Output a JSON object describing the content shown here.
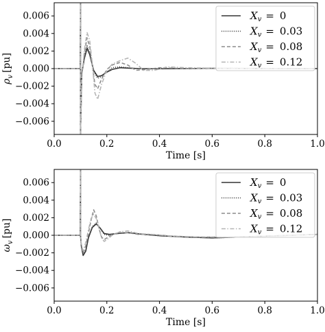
{
  "chart_data": [
    {
      "type": "line",
      "xlabel": "Time [s]",
      "ylabel": "ρ_v [pu]",
      "ylabel_main": "ρ",
      "ylabel_sub": "v",
      "ylabel_unit": "[pu]",
      "xlim": [
        0.0,
        1.0
      ],
      "ylim": [
        -0.0075,
        0.0075
      ],
      "xticks": [
        "0.0",
        "0.2",
        "0.4",
        "0.6",
        "0.8",
        "1.0"
      ],
      "xtick_values": [
        0.0,
        0.2,
        0.4,
        0.6,
        0.8,
        1.0
      ],
      "yticks": [
        "−0.006",
        "−0.004",
        "−0.002",
        "0.000",
        "0.002",
        "0.004",
        "0.006"
      ],
      "ytick_values": [
        -0.006,
        -0.004,
        -0.002,
        0.0,
        0.002,
        0.004,
        0.006
      ],
      "legend_position": "top-right",
      "grid": false,
      "series": [
        {
          "name": "X_v = 0",
          "legend_var": "X",
          "legend_sub": "v",
          "legend_value": "0",
          "style": "solid",
          "color": "#333333",
          "x": [
            0,
            0.099,
            0.1,
            0.1,
            0.105,
            0.115,
            0.125,
            0.135,
            0.15,
            0.165,
            0.18,
            0.2,
            0.22,
            0.25,
            0.28,
            0.32,
            0.38,
            0.5,
            0.6,
            0.7,
            0.8,
            0.9,
            1.0
          ],
          "y": [
            0,
            0,
            0.0075,
            -0.0075,
            -0.0005,
            0.0012,
            0.0023,
            0.0016,
            -0.0002,
            -0.0009,
            -0.0008,
            -0.0004,
            -0.0001,
            0.0001,
            5e-05,
            0,
            -2e-05,
            0,
            3e-05,
            2e-05,
            1e-05,
            0,
            0
          ]
        },
        {
          "name": "X_v = 0.03",
          "legend_var": "X",
          "legend_sub": "v",
          "legend_value": "0.03",
          "style": "dotted",
          "color": "#444444",
          "x": [
            0,
            0.099,
            0.1,
            0.1,
            0.105,
            0.115,
            0.125,
            0.135,
            0.15,
            0.165,
            0.18,
            0.2,
            0.22,
            0.25,
            0.28,
            0.32,
            0.38,
            0.5,
            0.6,
            0.7,
            0.8,
            0.9,
            1.0
          ],
          "y": [
            0,
            0,
            0.0075,
            -0.0075,
            -0.0006,
            0.0014,
            0.0026,
            0.0018,
            -0.0003,
            -0.0011,
            -0.0009,
            -0.0004,
            0.0001,
            0.0002,
            0.0001,
            0,
            -3e-05,
            0,
            3e-05,
            2e-05,
            1e-05,
            0,
            0
          ]
        },
        {
          "name": "X_v = 0.08",
          "legend_var": "X",
          "legend_sub": "v",
          "legend_value": "0.08",
          "style": "dashed",
          "color": "#8c8c8c",
          "x": [
            0,
            0.099,
            0.1,
            0.1,
            0.105,
            0.115,
            0.125,
            0.135,
            0.145,
            0.155,
            0.165,
            0.18,
            0.2,
            0.22,
            0.25,
            0.28,
            0.31,
            0.35,
            0.4,
            0.5,
            0.6,
            0.7,
            0.8,
            0.9,
            1.0
          ],
          "y": [
            0,
            0,
            0.0075,
            -0.0075,
            -0.0008,
            0.0018,
            0.0035,
            0.0025,
            0.0002,
            -0.0018,
            -0.0023,
            -0.0012,
            -0.0001,
            0.0004,
            0.0007,
            0.0004,
            -0.0002,
            -0.0001,
            0.0001,
            0,
            5e-05,
            3e-05,
            2e-05,
            0,
            0
          ]
        },
        {
          "name": "X_v = 0.12",
          "legend_var": "X",
          "legend_sub": "v",
          "legend_value": "0.12",
          "style": "dashdot",
          "color": "#b5b5b5",
          "x": [
            0,
            0.099,
            0.1,
            0.1,
            0.105,
            0.115,
            0.125,
            0.135,
            0.145,
            0.155,
            0.165,
            0.18,
            0.2,
            0.22,
            0.25,
            0.28,
            0.31,
            0.34,
            0.38,
            0.43,
            0.5,
            0.6,
            0.7,
            0.8,
            0.9,
            1.0
          ],
          "y": [
            0,
            0,
            0.0075,
            -0.0075,
            -0.001,
            0.0022,
            0.0041,
            0.0032,
            0.0005,
            -0.0028,
            -0.0035,
            -0.0018,
            -0.0002,
            0.0005,
            0.0009,
            0.0012,
            0.0006,
            -0.0002,
            -0.0002,
            0.0002,
            0.0001,
            5e-05,
            3e-05,
            2e-05,
            0,
            0
          ]
        }
      ]
    },
    {
      "type": "line",
      "xlabel": "Time [s]",
      "ylabel": "ω_v [pu]",
      "ylabel_main": "ω",
      "ylabel_sub": "v",
      "ylabel_unit": "[pu]",
      "xlim": [
        0.0,
        1.0
      ],
      "ylim": [
        -0.0075,
        0.0075
      ],
      "xticks": [
        "0.0",
        "0.2",
        "0.4",
        "0.6",
        "0.8",
        "1.0"
      ],
      "xtick_values": [
        0.0,
        0.2,
        0.4,
        0.6,
        0.8,
        1.0
      ],
      "yticks": [
        "−0.006",
        "−0.004",
        "−0.002",
        "0.000",
        "0.002",
        "0.004",
        "0.006"
      ],
      "ytick_values": [
        -0.006,
        -0.004,
        -0.002,
        0.0,
        0.002,
        0.004,
        0.006
      ],
      "legend_position": "top-right",
      "grid": false,
      "series": [
        {
          "name": "X_v = 0",
          "legend_var": "X",
          "legend_sub": "v",
          "legend_value": "0",
          "style": "solid",
          "color": "#333333",
          "x": [
            0,
            0.099,
            0.1,
            0.1,
            0.103,
            0.11,
            0.12,
            0.13,
            0.145,
            0.16,
            0.175,
            0.19,
            0.21,
            0.24,
            0.28,
            0.34,
            0.4,
            0.5,
            0.6,
            0.7,
            0.8,
            0.9,
            1.0
          ],
          "y": [
            0,
            0,
            0.0075,
            0,
            -0.0012,
            -0.0023,
            -0.0018,
            -0.0003,
            0.0009,
            0.0013,
            0.0008,
            0.0002,
            0.0001,
            0.0002,
            0.0003,
            0.0001,
            -5e-05,
            -0.0002,
            -0.0003,
            -0.0002,
            -0.0001,
            0,
            0.0001
          ]
        },
        {
          "name": "X_v = 0.03",
          "legend_var": "X",
          "legend_sub": "v",
          "legend_value": "0.03",
          "style": "dotted",
          "color": "#444444",
          "x": [
            0,
            0.099,
            0.1,
            0.1,
            0.103,
            0.11,
            0.12,
            0.13,
            0.145,
            0.16,
            0.175,
            0.19,
            0.21,
            0.24,
            0.28,
            0.34,
            0.4,
            0.5,
            0.6,
            0.7,
            0.8,
            0.9,
            1.0
          ],
          "y": [
            0,
            0,
            0.0075,
            0,
            -0.0012,
            -0.0022,
            -0.0017,
            -0.0002,
            0.001,
            0.0014,
            0.0008,
            0.0001,
            0,
            0.0002,
            0.0003,
            0.0001,
            -5e-05,
            -0.0002,
            -0.0003,
            -0.0002,
            -0.0001,
            0,
            0.0001
          ]
        },
        {
          "name": "X_v = 0.08",
          "legend_var": "X",
          "legend_sub": "v",
          "legend_value": "0.08",
          "style": "dashed",
          "color": "#8c8c8c",
          "x": [
            0,
            0.099,
            0.1,
            0.1,
            0.103,
            0.11,
            0.12,
            0.13,
            0.14,
            0.15,
            0.16,
            0.17,
            0.18,
            0.19,
            0.2,
            0.22,
            0.25,
            0.28,
            0.32,
            0.37,
            0.45,
            0.55,
            0.65,
            0.8,
            1.0
          ],
          "y": [
            0,
            0,
            0.0075,
            0,
            -0.0011,
            -0.002,
            -0.0012,
            0.0002,
            0.0017,
            0.0029,
            0.0022,
            0.0008,
            -0.0002,
            -0.0005,
            -0.0003,
            0.0001,
            0.0003,
            0.0003,
            0.0001,
            0.0001,
            -0.0001,
            -0.0002,
            -0.0002,
            -0.0001,
            0.0001
          ]
        },
        {
          "name": "X_v = 0.12",
          "legend_var": "X",
          "legend_sub": "v",
          "legend_value": "0.12",
          "style": "dashdot",
          "color": "#b5b5b5",
          "x": [
            0,
            0.099,
            0.1,
            0.1,
            0.103,
            0.11,
            0.12,
            0.13,
            0.14,
            0.15,
            0.16,
            0.17,
            0.18,
            0.19,
            0.2,
            0.22,
            0.25,
            0.28,
            0.32,
            0.37,
            0.45,
            0.55,
            0.65,
            0.8,
            1.0
          ],
          "y": [
            0,
            0,
            0.0075,
            0,
            -0.001,
            -0.0018,
            -0.0008,
            0.0006,
            0.0019,
            0.0024,
            0.0019,
            0.0008,
            -0.0003,
            -0.0007,
            -0.0005,
            0,
            0.0004,
            0.0005,
            0.0002,
            0.0001,
            -0.0001,
            -0.0002,
            -0.0002,
            -0.0001,
            0.0001
          ]
        }
      ]
    }
  ]
}
